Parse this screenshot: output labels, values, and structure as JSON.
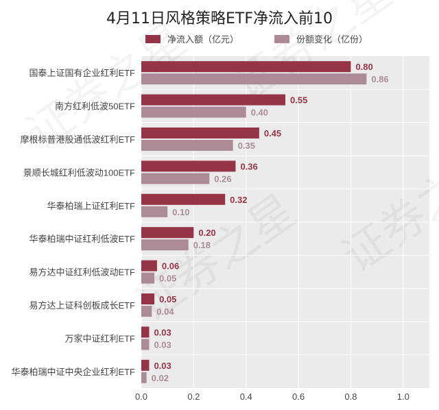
{
  "chart_data": {
    "type": "bar",
    "orientation": "horizontal",
    "title": "4月11日风格策略ETF净流入前10",
    "categories": [
      "国泰上证国有企业红利ETF",
      "南方红利低波50ETF",
      "摩根标普港股通低波红利ETF",
      "景顺长城红利低波动100ETF",
      "华泰柏瑞上证红利ETF",
      "华泰柏瑞中证红利低波ETF",
      "易方达中证红利低波动ETF",
      "易方达上证科创板成长ETF",
      "万家中证红利ETF",
      "华泰柏瑞中证中央企业红利ETF"
    ],
    "series": [
      {
        "name": "净流入额（亿元）",
        "values": [
          0.8,
          0.55,
          0.45,
          0.36,
          0.32,
          0.2,
          0.06,
          0.05,
          0.03,
          0.03
        ],
        "labels": [
          "0.80",
          "0.55",
          "0.45",
          "0.36",
          "0.32",
          "0.20",
          "0.06",
          "0.05",
          "0.03",
          "0.03"
        ],
        "color": "#953447"
      },
      {
        "name": "份额变化（亿份）",
        "values": [
          0.86,
          0.4,
          0.35,
          0.26,
          0.1,
          0.18,
          0.05,
          0.04,
          0.03,
          0.02
        ],
        "labels": [
          "0.86",
          "0.40",
          "0.35",
          "0.26",
          "0.10",
          "0.18",
          "0.05",
          "0.04",
          "0.03",
          "0.02"
        ],
        "color": "#ad8b96"
      }
    ],
    "xlim": [
      0,
      1.1
    ],
    "xticks": [
      "0.0",
      "0.2",
      "0.4",
      "0.6",
      "0.8",
      "1.0"
    ],
    "grid": true,
    "legend_position": "top-center",
    "watermark": "证券之星",
    "colors": {
      "plot_background": "#ebebeb",
      "grid": "#ffffff",
      "label_primary": "#953447",
      "label_secondary": "#ad8b96",
      "text": "#444444"
    }
  }
}
